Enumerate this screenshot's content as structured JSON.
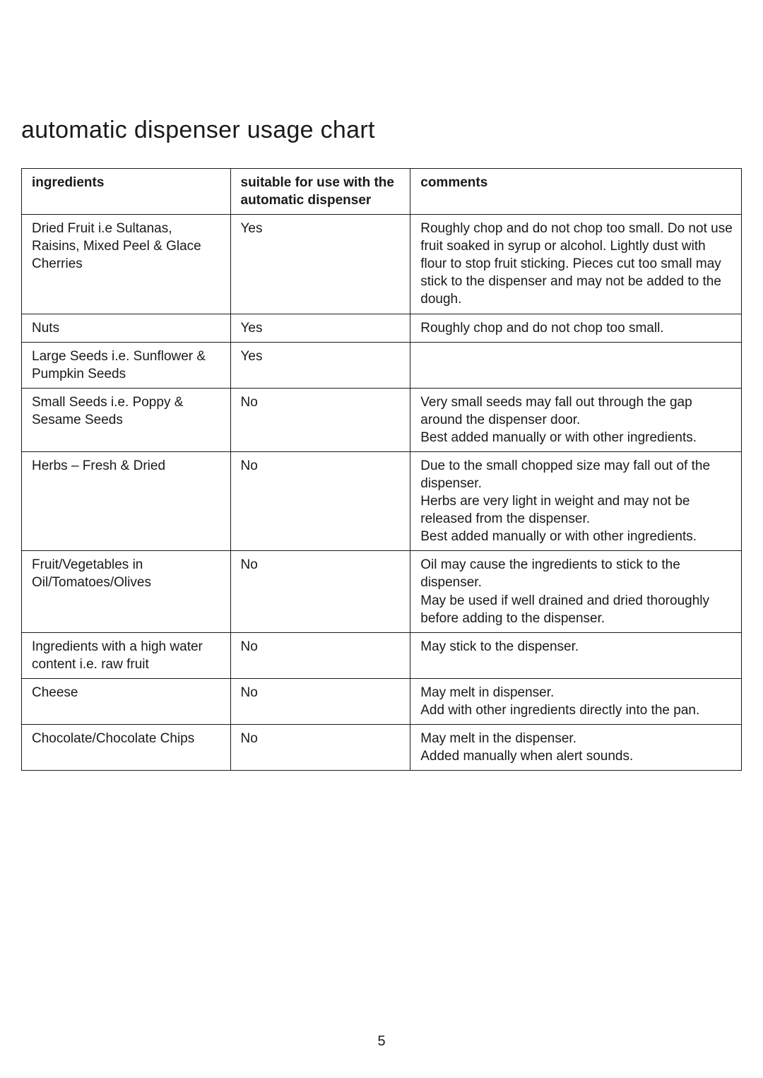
{
  "page": {
    "title": "automatic dispenser usage chart",
    "pageNumber": "5",
    "table": {
      "headers": {
        "ingredients": "ingredients",
        "suitable": "suitable for use with the automatic dispenser",
        "comments": "comments"
      },
      "rows": [
        {
          "ingredient": "Dried Fruit i.e Sultanas, Raisins, Mixed Peel & Glace Cherries",
          "suitable": "Yes",
          "comments": "Roughly chop and do not chop too small. Do not use fruit soaked in syrup or alcohol. Lightly dust with flour to stop fruit sticking. Pieces cut too small may stick to the dispenser and may not be added to the dough."
        },
        {
          "ingredient": "Nuts",
          "suitable": "Yes",
          "comments": "Roughly chop and do not chop too small."
        },
        {
          "ingredient": "Large Seeds i.e. Sunflower & Pumpkin Seeds",
          "suitable": "Yes",
          "comments": ""
        },
        {
          "ingredient": "Small Seeds i.e. Poppy & Sesame Seeds",
          "suitable": "No",
          "comments_lines": [
            "Very small seeds may fall out through the gap around the dispenser door.",
            "Best added manually or with other ingredients."
          ]
        },
        {
          "ingredient": "Herbs – Fresh & Dried",
          "suitable": "No",
          "comments_lines": [
            "Due to the small chopped size may fall out of the dispenser.",
            "Herbs are very light in weight and may not be released from the dispenser.",
            "Best added manually or with other ingredients."
          ]
        },
        {
          "ingredient": "Fruit/Vegetables in Oil/Tomatoes/Olives",
          "suitable": "No",
          "comments_lines": [
            "Oil may cause the ingredients to stick to the dispenser.",
            "May be used if well drained and dried thoroughly before adding to the dispenser."
          ]
        },
        {
          "ingredient": "Ingredients with a high water content i.e. raw fruit",
          "suitable": "No",
          "comments": "May stick to the dispenser."
        },
        {
          "ingredient": "Cheese",
          "suitable": "No",
          "comments_lines": [
            "May melt in dispenser.",
            "Add with other ingredients directly into the pan."
          ]
        },
        {
          "ingredient": "Chocolate/Chocolate Chips",
          "suitable": "No",
          "comments_lines": [
            "May melt in the dispenser.",
            "Added manually when alert sounds."
          ]
        }
      ]
    }
  }
}
